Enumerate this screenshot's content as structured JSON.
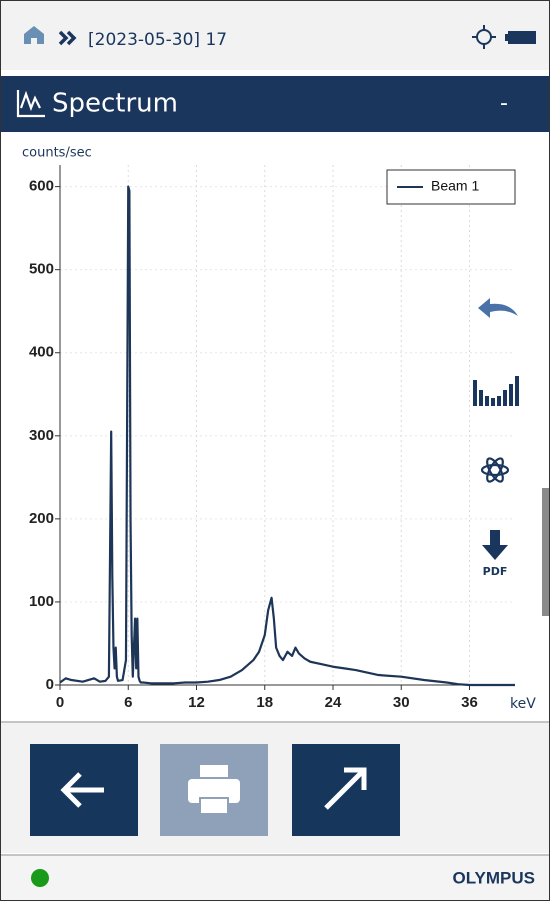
{
  "header": {
    "breadcrumb": "[2023-05-30] 17",
    "title": "Spectrum",
    "title_right": "-"
  },
  "toolbar": {
    "pdf_label": "PDF"
  },
  "chart_data": {
    "type": "line",
    "y_label": "counts/sec",
    "x_label": "keV",
    "x": [
      0,
      0.5,
      1,
      2,
      3,
      3.5,
      4,
      4.3,
      4.5,
      4.6,
      4.7,
      4.8,
      4.9,
      5,
      5.1,
      5.5,
      5.8,
      6,
      6.1,
      6.2,
      6.3,
      6.4,
      6.6,
      6.7,
      6.8,
      6.9,
      7,
      7.1,
      7.3,
      8,
      9,
      10,
      11,
      12,
      13,
      14,
      15,
      16,
      17,
      17.5,
      18,
      18.3,
      18.6,
      18.8,
      19,
      19.3,
      19.6,
      20,
      20.4,
      20.7,
      21,
      21.5,
      22,
      23,
      24,
      25,
      26,
      27,
      28,
      30,
      32,
      34,
      35,
      36,
      37,
      38,
      40
    ],
    "series": [
      {
        "name": "Beam 1",
        "color": "#1d3557",
        "values": [
          3,
          8,
          6,
          4,
          8,
          4,
          5,
          10,
          305,
          130,
          45,
          20,
          45,
          10,
          5,
          6,
          30,
          600,
          595,
          200,
          60,
          10,
          80,
          20,
          80,
          10,
          5,
          3,
          3,
          2,
          2,
          2,
          3,
          3,
          4,
          6,
          10,
          18,
          30,
          40,
          60,
          90,
          105,
          80,
          45,
          35,
          30,
          40,
          35,
          45,
          38,
          32,
          28,
          25,
          22,
          20,
          18,
          15,
          12,
          10,
          6,
          3,
          1,
          0,
          0,
          0,
          0
        ]
      }
    ],
    "xlim": [
      0,
      40
    ],
    "ylim": [
      0,
      620
    ],
    "xticks": [
      0,
      6,
      12,
      18,
      24,
      30,
      36
    ],
    "yticks": [
      0,
      100,
      200,
      300,
      400,
      500,
      600
    ],
    "grid": true,
    "legend": "upper right"
  },
  "footer": {
    "brand": "OLYMPUS"
  }
}
